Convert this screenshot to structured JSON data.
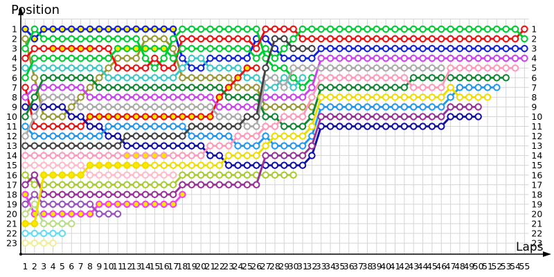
{
  "chart": {
    "title": "Position",
    "xlabel": "Laps"
  },
  "chart_data": {
    "type": "line",
    "title": "Position",
    "xlabel": "Laps",
    "x_range": [
      1,
      55
    ],
    "y_range": [
      1,
      23
    ],
    "y_inverted": true,
    "grid": true,
    "legend": "none",
    "grid_color": "#d4d4d4",
    "marker_fill_default": "#ffffff",
    "marker_fill_highlight": "#ffe800",
    "axis_color": "#000000",
    "x_tick_start": 1,
    "x_tick_end": 55,
    "y_tick_start": 1,
    "y_tick_end": 23,
    "series": [
      {
        "name": "car-blue-start1",
        "color": "#1122dd",
        "hl": [
          1,
          17
        ],
        "pos": [
          1,
          2,
          1,
          1,
          1,
          1,
          1,
          1,
          1,
          1,
          1,
          1,
          1,
          1,
          1,
          1,
          1,
          4,
          5,
          5,
          4,
          4,
          4,
          4,
          4,
          2,
          2,
          3,
          4,
          4,
          4,
          4,
          3,
          3,
          3,
          3,
          3,
          3,
          3,
          3,
          3,
          3,
          3,
          3,
          3,
          3,
          3,
          3,
          3,
          3,
          3,
          3,
          3,
          3,
          3
        ]
      },
      {
        "name": "car-olive-start2",
        "color": "#999933",
        "hl": null,
        "pos": [
          2,
          6,
          10,
          10,
          10,
          9,
          8,
          7,
          6,
          5,
          4,
          4,
          4,
          2,
          2,
          2,
          3,
          6,
          6,
          6,
          6,
          6,
          6,
          7,
          7,
          7,
          9,
          9,
          9,
          9,
          9,
          9
        ]
      },
      {
        "name": "car-green-start3",
        "color": "#00cc33",
        "hl": null,
        "pos": [
          3,
          1,
          2,
          2,
          2,
          2,
          2,
          2,
          2,
          2,
          2,
          2,
          2,
          4,
          5,
          4,
          2,
          1,
          1,
          1,
          1,
          1,
          1,
          1,
          1,
          1,
          4,
          5,
          5,
          6,
          7,
          6
        ]
      },
      {
        "name": "car-red-start4",
        "color": "#ee1111",
        "hl": [
          4,
          8
        ],
        "pos": [
          4,
          3,
          3,
          3,
          3,
          3,
          3,
          3,
          3,
          3,
          5,
          5,
          5,
          5,
          4,
          5,
          5,
          2,
          2,
          2,
          2,
          2,
          2,
          2,
          2,
          3,
          1,
          1,
          1,
          1,
          2,
          2,
          2,
          2,
          2,
          2,
          2,
          2,
          2,
          2,
          2,
          2,
          2,
          2,
          2,
          2,
          2,
          2,
          2,
          2,
          2,
          2,
          2,
          2,
          1
        ]
      },
      {
        "name": "car-turquoise-start5",
        "color": "#3cc7c7",
        "hl": null,
        "pos": [
          5,
          5,
          5,
          5,
          5,
          5,
          5,
          5,
          5,
          6,
          6,
          6,
          6,
          6,
          6,
          6,
          6,
          5,
          4,
          4,
          5,
          5,
          5,
          5,
          6,
          6,
          7,
          7,
          6,
          7,
          6
        ]
      },
      {
        "name": "car-green-start6",
        "color": "#00cc33",
        "hl": [
          11,
          16
        ],
        "pos": [
          6,
          4,
          4,
          4,
          4,
          4,
          4,
          4,
          4,
          4,
          3,
          3,
          3,
          3,
          3,
          3,
          4,
          3,
          3,
          3,
          3,
          3,
          3,
          3,
          3,
          4,
          3,
          4,
          3,
          2,
          1,
          1,
          1,
          1,
          1,
          1,
          1,
          1,
          1,
          1,
          1,
          1,
          1,
          1,
          1,
          1,
          1,
          1,
          1,
          1,
          1,
          1,
          1,
          1,
          2
        ]
      },
      {
        "name": "car-red-start7",
        "color": "#ee1111",
        "hl": [
          8,
          25
        ],
        "pos": [
          7,
          11,
          11,
          11,
          11,
          11,
          11,
          10,
          10,
          10,
          10,
          10,
          10,
          10,
          10,
          10,
          10,
          10,
          10,
          10,
          10,
          8,
          7,
          6,
          5,
          5
        ]
      },
      {
        "name": "car-magenta-start8",
        "color": "#cc44ee",
        "hl": null,
        "pos": [
          8,
          7,
          7,
          7,
          7,
          7,
          7,
          8,
          8,
          8,
          8,
          8,
          8,
          8,
          8,
          8,
          8,
          8,
          8,
          8,
          8,
          9,
          9,
          9,
          9,
          9,
          8,
          8,
          8,
          8,
          8,
          7,
          4,
          4,
          4,
          4,
          4,
          4,
          4,
          4,
          4,
          4,
          4,
          4,
          4,
          4,
          4,
          4,
          4,
          4,
          4,
          4,
          4,
          4,
          4
        ]
      },
      {
        "name": "car-navy-start9",
        "color": "#1111aa",
        "hl": null,
        "pos": [
          9,
          9,
          9,
          9,
          9,
          10,
          10,
          11,
          11,
          12,
          12,
          13,
          13,
          13,
          13,
          13,
          13,
          13,
          13,
          13,
          14,
          14,
          15,
          15,
          15,
          15,
          15,
          15,
          15,
          15,
          15,
          14,
          11,
          11,
          11,
          11,
          11,
          11,
          11,
          11,
          11,
          11,
          11,
          11,
          11,
          11,
          10,
          10,
          10,
          10
        ]
      },
      {
        "name": "car-darkgreen-start10",
        "color": "#118833",
        "hl": null,
        "pos": [
          10,
          8,
          6,
          6,
          6,
          6,
          6,
          6,
          7,
          7,
          7,
          7,
          7,
          7,
          7,
          7,
          7,
          7,
          7,
          7,
          7,
          7,
          8,
          8,
          8,
          8,
          10,
          10,
          11,
          11,
          11,
          10,
          7,
          7,
          7,
          7,
          7,
          7,
          7,
          7,
          7,
          7,
          6,
          6,
          6,
          6,
          6,
          6,
          6,
          6,
          6,
          6,
          6
        ]
      },
      {
        "name": "car-skyblue-start11",
        "color": "#2299ee",
        "hl": null,
        "pos": [
          11,
          12,
          12,
          12,
          12,
          12,
          12,
          12,
          12,
          11,
          11,
          11,
          11,
          11,
          11,
          11,
          11,
          11,
          12,
          12,
          12,
          12,
          12,
          13,
          13,
          13,
          12,
          13,
          13,
          13,
          13,
          12,
          9,
          9,
          9,
          9,
          9,
          9,
          9,
          9,
          9,
          9,
          9,
          9,
          9,
          9,
          8,
          7,
          7,
          7,
          7,
          7
        ]
      },
      {
        "name": "car-silver-start12",
        "color": "#aaaaaa",
        "hl": null,
        "pos": [
          12,
          10,
          8,
          8,
          8,
          8,
          9,
          9,
          9,
          9,
          9,
          9,
          9,
          9,
          9,
          9,
          9,
          9,
          9,
          9,
          9,
          10,
          10,
          10,
          11,
          11,
          6,
          6,
          7,
          5,
          5,
          5,
          5,
          5,
          5,
          5,
          5,
          5,
          5,
          5,
          5,
          5,
          5,
          5,
          5,
          5
        ]
      },
      {
        "name": "car-black-start13",
        "color": "#444444",
        "hl": null,
        "pos": [
          13,
          13,
          13,
          13,
          13,
          13,
          13,
          13,
          13,
          13,
          13,
          12,
          12,
          12,
          12,
          12,
          12,
          12,
          11,
          11,
          11,
          11,
          11,
          11,
          10,
          10,
          5,
          2,
          2,
          3,
          3,
          3
        ]
      },
      {
        "name": "car-pink-start14",
        "color": "#ff99bb",
        "hl": [
          12,
          16
        ],
        "pos": [
          14,
          14,
          14,
          14,
          14,
          14,
          14,
          14,
          14,
          14,
          14,
          14,
          14,
          14,
          14,
          14,
          14,
          14,
          14,
          14,
          13,
          13,
          13,
          12,
          12,
          12,
          11,
          11,
          10,
          10,
          10,
          8,
          6,
          6,
          6,
          6,
          6,
          6,
          6,
          6,
          6,
          6,
          7,
          7,
          7,
          7,
          5,
          5,
          5,
          5,
          5,
          5,
          5,
          5
        ]
      },
      {
        "name": "car-lightpink-start15",
        "color": "#ffbbcc",
        "hl": null,
        "pos": [
          15,
          15,
          15,
          15,
          15,
          15,
          15,
          16,
          16,
          16,
          16,
          16,
          16,
          16,
          16,
          16,
          16
        ]
      },
      {
        "name": "car-yellowgreen-start16",
        "color": "#aacc33",
        "hl": null,
        "pos": [
          16,
          17,
          17,
          17,
          17,
          17,
          17,
          17,
          17,
          17,
          17,
          17,
          17,
          17,
          17,
          17,
          17,
          16,
          16,
          16,
          16,
          16,
          16,
          16,
          16,
          16,
          16,
          16,
          16,
          16
        ]
      },
      {
        "name": "car-purple-start17",
        "color": "#993399",
        "hl": null,
        "pos": [
          17,
          16,
          18,
          18,
          18,
          18,
          18,
          18,
          18,
          18,
          18,
          18,
          18,
          18,
          18,
          18,
          18,
          17,
          17,
          17,
          17,
          17,
          17,
          17,
          17,
          17,
          14,
          14,
          14,
          14,
          14,
          13,
          10,
          10,
          10,
          10,
          10,
          10,
          10,
          10,
          10,
          10,
          10,
          10,
          10,
          10,
          9,
          9,
          9,
          9
        ]
      },
      {
        "name": "car-magenta-start18",
        "color": "#ee44ee",
        "hl": [
          1,
          18
        ],
        "pos": [
          18,
          20,
          20,
          20,
          20,
          20,
          20,
          20,
          19,
          19,
          19,
          19,
          19,
          19,
          19,
          19,
          19,
          18
        ]
      },
      {
        "name": "car-plum-start19",
        "color": "#9955bb",
        "hl": null,
        "pos": [
          19,
          18,
          19,
          19,
          19,
          19,
          19,
          19,
          20,
          20,
          20
        ]
      },
      {
        "name": "car-palegreen-start20",
        "color": "#bbdd88",
        "hl": null,
        "pos": [
          20,
          19,
          21,
          21,
          21,
          21
        ]
      },
      {
        "name": "car-yellow-start21",
        "color": "#eedd00",
        "hl": [
          1,
          14
        ],
        "pos": [
          21,
          21,
          16,
          16,
          16,
          16,
          16,
          15,
          15,
          15,
          15,
          15,
          15,
          15,
          15,
          15,
          15,
          15,
          15,
          15,
          15,
          15,
          14,
          14,
          14,
          14,
          13,
          12,
          12,
          12,
          12,
          11,
          8,
          8,
          8,
          8,
          8,
          8,
          8,
          8,
          8,
          8,
          8,
          8,
          8,
          8,
          7,
          8,
          8,
          8,
          8
        ]
      },
      {
        "name": "car-cyan-start22",
        "color": "#66ddee",
        "hl": null,
        "pos": [
          22,
          22,
          22,
          22,
          22
        ]
      },
      {
        "name": "car-paleyellow-start23",
        "color": "#eeee99",
        "hl": null,
        "pos": [
          23,
          23,
          23,
          23
        ]
      }
    ]
  }
}
